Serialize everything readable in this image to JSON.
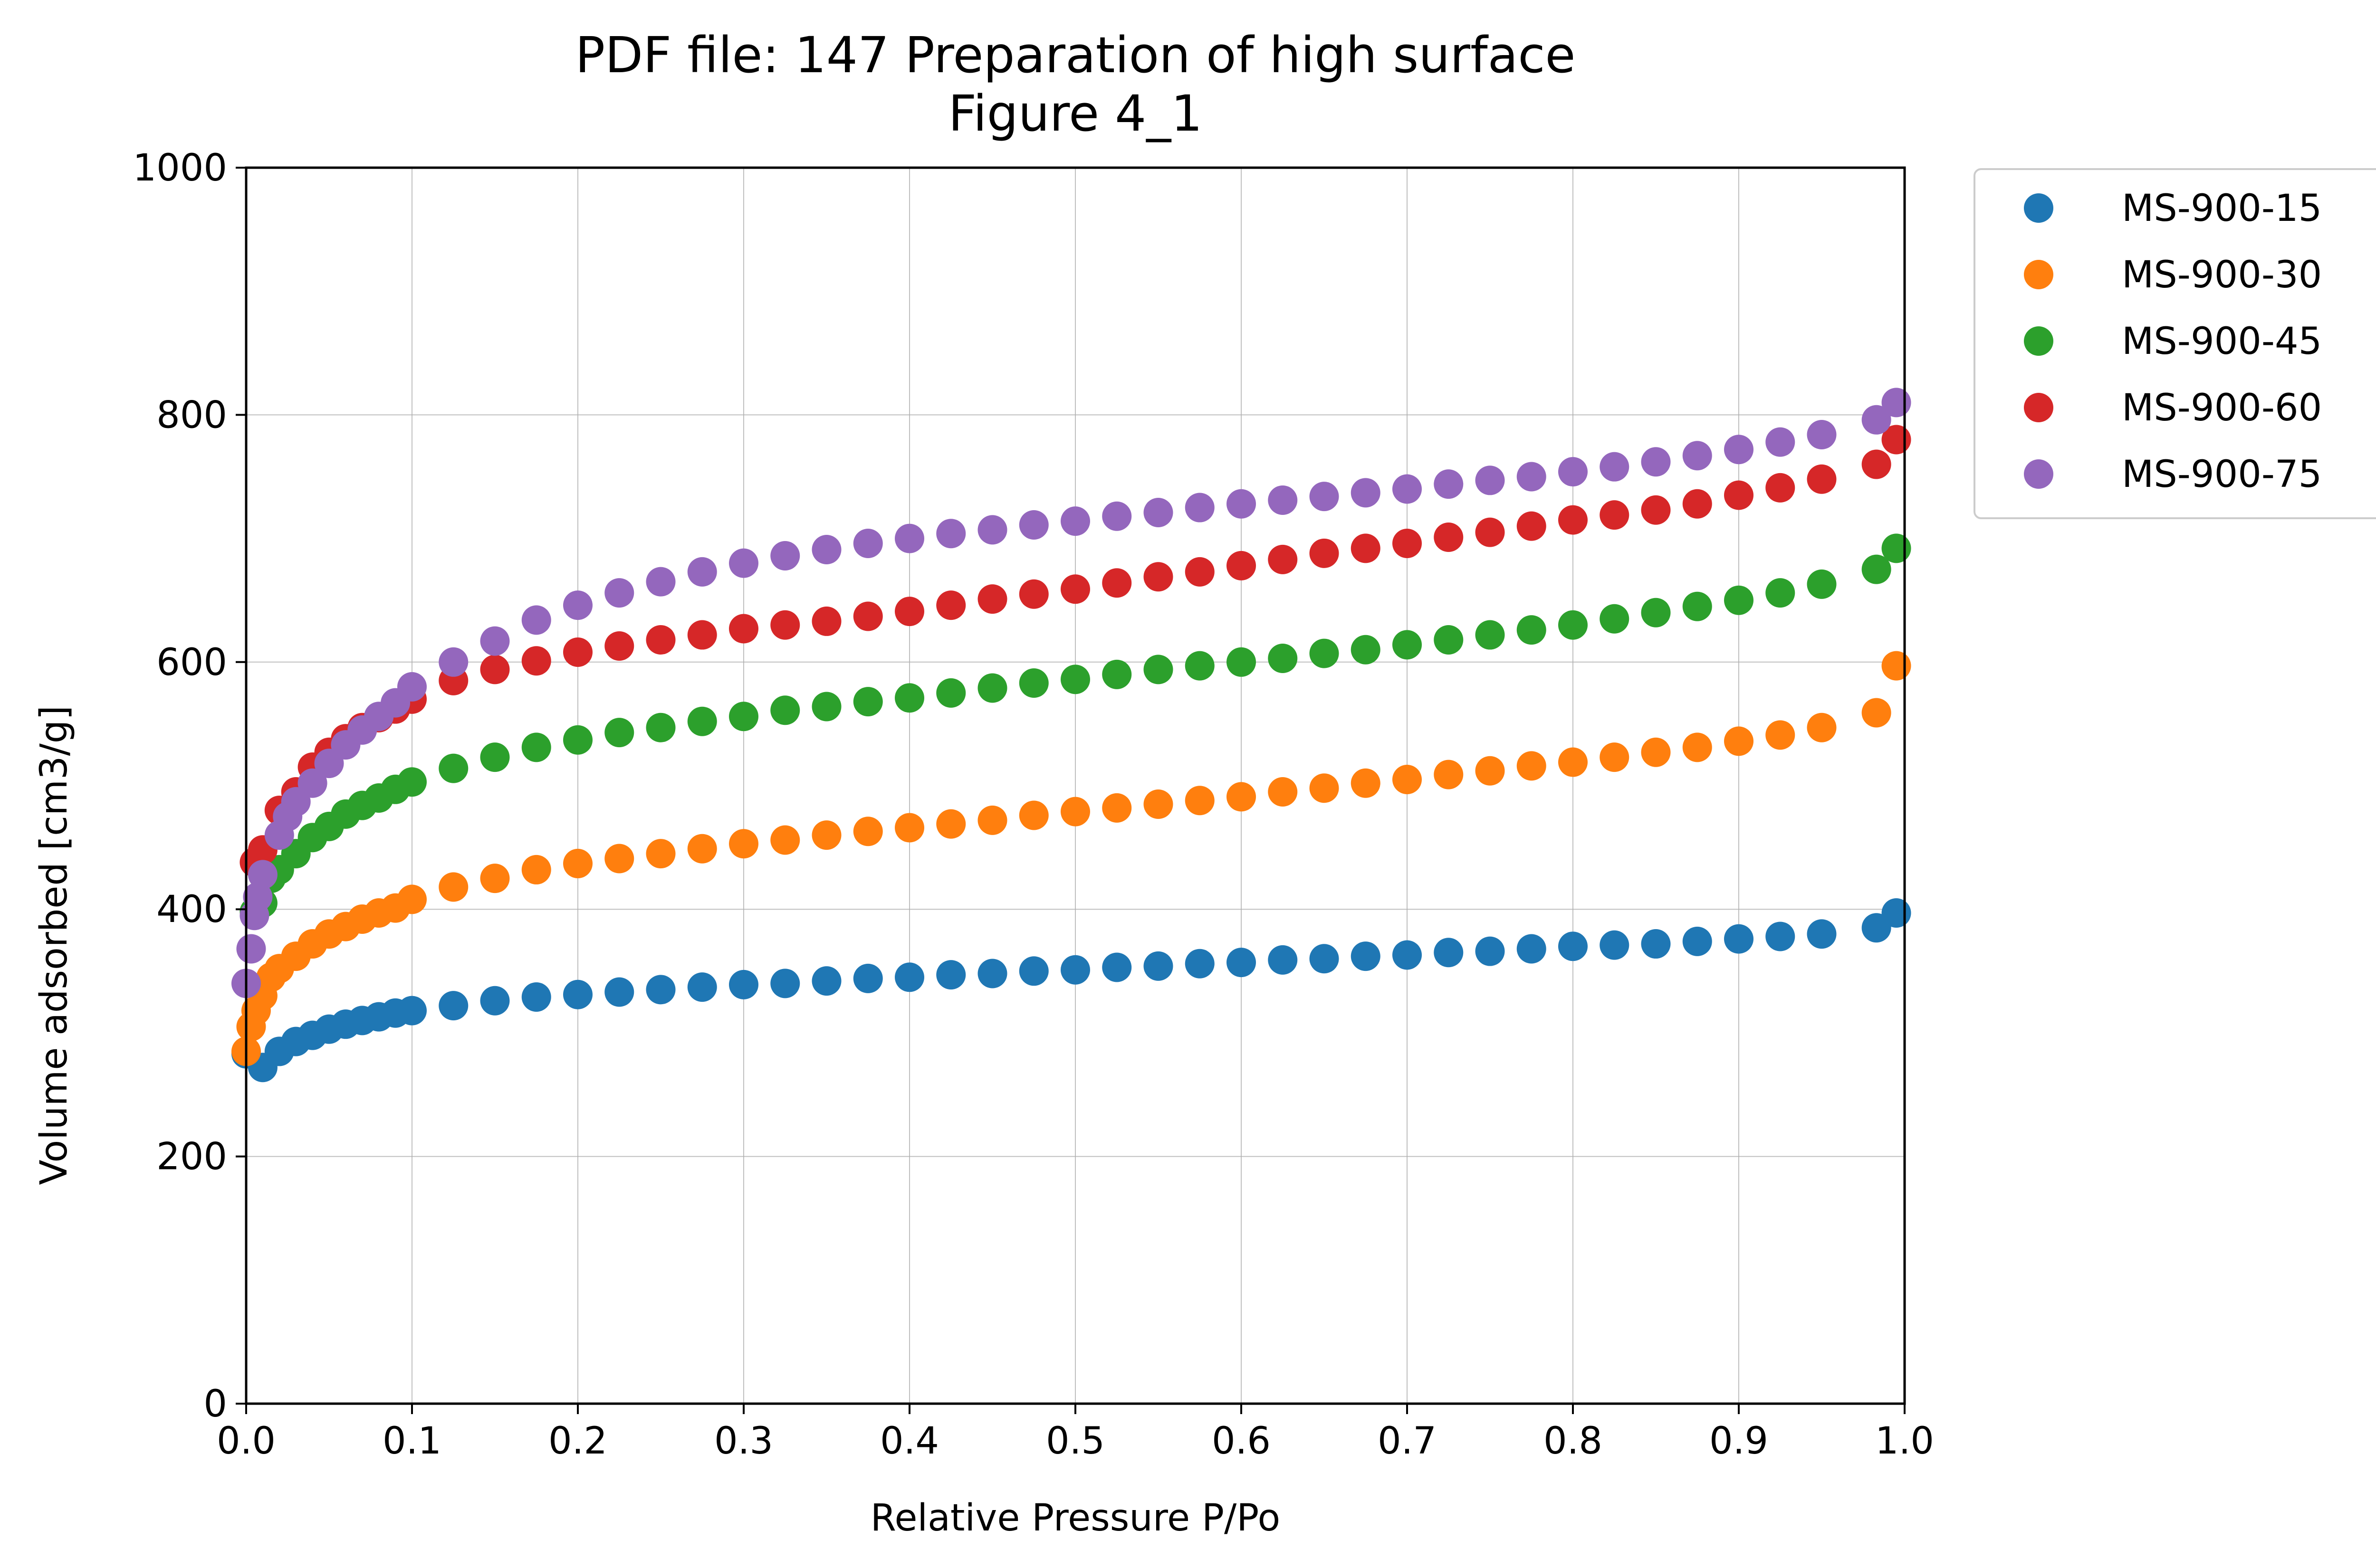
{
  "chart_data": {
    "type": "scatter",
    "title": [
      "PDF file: 147 Preparation of high surface",
      "Figure 4_1"
    ],
    "xlabel": "Relative Pressure P/Po",
    "ylabel": "Volume adsorbed [cm3/g]",
    "xlim": [
      0.0,
      1.0
    ],
    "ylim": [
      0,
      1000
    ],
    "xticks": [
      "0.0",
      "0.1",
      "0.2",
      "0.3",
      "0.4",
      "0.5",
      "0.6",
      "0.7",
      "0.8",
      "0.9",
      "1.0"
    ],
    "yticks": [
      "0",
      "200",
      "400",
      "600",
      "800",
      "1000"
    ],
    "grid": true,
    "legend_position": "outside-top-right",
    "series": [
      {
        "name": "MS-900-15",
        "color": "#1f77b4",
        "points": [
          [
            0.0,
            283
          ],
          [
            0.01,
            272
          ],
          [
            0.02,
            285
          ],
          [
            0.03,
            293
          ],
          [
            0.04,
            298
          ],
          [
            0.05,
            303
          ],
          [
            0.06,
            307
          ],
          [
            0.07,
            310
          ],
          [
            0.08,
            313
          ],
          [
            0.09,
            316
          ],
          [
            0.1,
            318
          ],
          [
            0.125,
            322
          ],
          [
            0.15,
            326
          ],
          [
            0.175,
            329
          ],
          [
            0.2,
            331
          ],
          [
            0.225,
            333
          ],
          [
            0.25,
            335
          ],
          [
            0.275,
            337
          ],
          [
            0.3,
            339
          ],
          [
            0.325,
            340
          ],
          [
            0.35,
            342
          ],
          [
            0.375,
            344
          ],
          [
            0.4,
            345
          ],
          [
            0.425,
            347
          ],
          [
            0.45,
            348
          ],
          [
            0.475,
            350
          ],
          [
            0.5,
            351
          ],
          [
            0.525,
            353
          ],
          [
            0.55,
            354
          ],
          [
            0.575,
            356
          ],
          [
            0.6,
            357
          ],
          [
            0.625,
            359
          ],
          [
            0.65,
            360
          ],
          [
            0.675,
            362
          ],
          [
            0.7,
            363
          ],
          [
            0.725,
            365
          ],
          [
            0.75,
            366
          ],
          [
            0.775,
            368
          ],
          [
            0.8,
            370
          ],
          [
            0.825,
            371
          ],
          [
            0.85,
            372
          ],
          [
            0.875,
            374
          ],
          [
            0.9,
            376
          ],
          [
            0.925,
            378
          ],
          [
            0.95,
            380
          ],
          [
            0.983,
            385
          ],
          [
            0.995,
            397
          ]
        ]
      },
      {
        "name": "MS-900-30",
        "color": "#ff7f0e",
        "points": [
          [
            0.0,
            285
          ],
          [
            0.003,
            305
          ],
          [
            0.006,
            318
          ],
          [
            0.01,
            330
          ],
          [
            0.015,
            345
          ],
          [
            0.02,
            352
          ],
          [
            0.03,
            362
          ],
          [
            0.04,
            372
          ],
          [
            0.05,
            380
          ],
          [
            0.06,
            386
          ],
          [
            0.07,
            392
          ],
          [
            0.08,
            397
          ],
          [
            0.09,
            401
          ],
          [
            0.1,
            408
          ],
          [
            0.125,
            418
          ],
          [
            0.15,
            425
          ],
          [
            0.175,
            432
          ],
          [
            0.2,
            437
          ],
          [
            0.225,
            441
          ],
          [
            0.25,
            445
          ],
          [
            0.275,
            449
          ],
          [
            0.3,
            453
          ],
          [
            0.325,
            456
          ],
          [
            0.35,
            460
          ],
          [
            0.375,
            463
          ],
          [
            0.4,
            466
          ],
          [
            0.425,
            469
          ],
          [
            0.45,
            472
          ],
          [
            0.475,
            476
          ],
          [
            0.5,
            479
          ],
          [
            0.525,
            482
          ],
          [
            0.55,
            485
          ],
          [
            0.575,
            488
          ],
          [
            0.6,
            491
          ],
          [
            0.625,
            495
          ],
          [
            0.65,
            498
          ],
          [
            0.675,
            502
          ],
          [
            0.7,
            505
          ],
          [
            0.725,
            509
          ],
          [
            0.75,
            512
          ],
          [
            0.775,
            516
          ],
          [
            0.8,
            519
          ],
          [
            0.825,
            523
          ],
          [
            0.85,
            527
          ],
          [
            0.875,
            531
          ],
          [
            0.9,
            536
          ],
          [
            0.925,
            541
          ],
          [
            0.95,
            547
          ],
          [
            0.983,
            559
          ],
          [
            0.995,
            597
          ]
        ]
      },
      {
        "name": "MS-900-45",
        "color": "#2ca02c",
        "points": [
          [
            0.005,
            398
          ],
          [
            0.01,
            405
          ],
          [
            0.015,
            425
          ],
          [
            0.02,
            432
          ],
          [
            0.03,
            445
          ],
          [
            0.04,
            458
          ],
          [
            0.05,
            467
          ],
          [
            0.06,
            477
          ],
          [
            0.07,
            484
          ],
          [
            0.08,
            490
          ],
          [
            0.09,
            497
          ],
          [
            0.1,
            503
          ],
          [
            0.125,
            514
          ],
          [
            0.15,
            523
          ],
          [
            0.175,
            531
          ],
          [
            0.2,
            537
          ],
          [
            0.225,
            543
          ],
          [
            0.25,
            547
          ],
          [
            0.275,
            552
          ],
          [
            0.3,
            556
          ],
          [
            0.325,
            561
          ],
          [
            0.35,
            564
          ],
          [
            0.375,
            568
          ],
          [
            0.4,
            571
          ],
          [
            0.425,
            575
          ],
          [
            0.45,
            579
          ],
          [
            0.475,
            583
          ],
          [
            0.5,
            586
          ],
          [
            0.525,
            590
          ],
          [
            0.55,
            594
          ],
          [
            0.575,
            597
          ],
          [
            0.6,
            600
          ],
          [
            0.625,
            603
          ],
          [
            0.65,
            607
          ],
          [
            0.675,
            610
          ],
          [
            0.7,
            614
          ],
          [
            0.725,
            618
          ],
          [
            0.75,
            622
          ],
          [
            0.775,
            626
          ],
          [
            0.8,
            630
          ],
          [
            0.825,
            635
          ],
          [
            0.85,
            640
          ],
          [
            0.875,
            645
          ],
          [
            0.9,
            650
          ],
          [
            0.925,
            656
          ],
          [
            0.95,
            663
          ],
          [
            0.983,
            675
          ],
          [
            0.995,
            692
          ]
        ]
      },
      {
        "name": "MS-900-60",
        "color": "#d62728",
        "points": [
          [
            0.005,
            438
          ],
          [
            0.01,
            448
          ],
          [
            0.02,
            480
          ],
          [
            0.03,
            495
          ],
          [
            0.04,
            515
          ],
          [
            0.05,
            527
          ],
          [
            0.06,
            538
          ],
          [
            0.07,
            547
          ],
          [
            0.08,
            555
          ],
          [
            0.09,
            562
          ],
          [
            0.1,
            570
          ],
          [
            0.125,
            585
          ],
          [
            0.15,
            594
          ],
          [
            0.175,
            601
          ],
          [
            0.2,
            608
          ],
          [
            0.225,
            613
          ],
          [
            0.25,
            618
          ],
          [
            0.275,
            622
          ],
          [
            0.3,
            627
          ],
          [
            0.325,
            630
          ],
          [
            0.35,
            633
          ],
          [
            0.375,
            637
          ],
          [
            0.4,
            641
          ],
          [
            0.425,
            646
          ],
          [
            0.45,
            651
          ],
          [
            0.475,
            655
          ],
          [
            0.5,
            659
          ],
          [
            0.525,
            664
          ],
          [
            0.55,
            669
          ],
          [
            0.575,
            673
          ],
          [
            0.6,
            678
          ],
          [
            0.625,
            683
          ],
          [
            0.65,
            688
          ],
          [
            0.675,
            692
          ],
          [
            0.7,
            696
          ],
          [
            0.725,
            701
          ],
          [
            0.75,
            705
          ],
          [
            0.775,
            710
          ],
          [
            0.8,
            715
          ],
          [
            0.825,
            719
          ],
          [
            0.85,
            723
          ],
          [
            0.875,
            728
          ],
          [
            0.9,
            735
          ],
          [
            0.925,
            741
          ],
          [
            0.95,
            748
          ],
          [
            0.983,
            760
          ],
          [
            0.995,
            780
          ]
        ]
      },
      {
        "name": "MS-900-75",
        "color": "#9467bd",
        "points": [
          [
            0.0,
            340
          ],
          [
            0.003,
            368
          ],
          [
            0.005,
            395
          ],
          [
            0.007,
            410
          ],
          [
            0.01,
            428
          ],
          [
            0.02,
            460
          ],
          [
            0.025,
            475
          ],
          [
            0.03,
            487
          ],
          [
            0.04,
            502
          ],
          [
            0.05,
            518
          ],
          [
            0.06,
            533
          ],
          [
            0.07,
            545
          ],
          [
            0.08,
            556
          ],
          [
            0.09,
            567
          ],
          [
            0.1,
            580
          ],
          [
            0.125,
            600
          ],
          [
            0.15,
            617
          ],
          [
            0.175,
            634
          ],
          [
            0.2,
            646
          ],
          [
            0.225,
            656
          ],
          [
            0.25,
            665
          ],
          [
            0.275,
            673
          ],
          [
            0.3,
            680
          ],
          [
            0.325,
            686
          ],
          [
            0.35,
            691
          ],
          [
            0.375,
            696
          ],
          [
            0.4,
            700
          ],
          [
            0.425,
            704
          ],
          [
            0.45,
            707
          ],
          [
            0.475,
            711
          ],
          [
            0.5,
            714
          ],
          [
            0.525,
            718
          ],
          [
            0.55,
            721
          ],
          [
            0.575,
            725
          ],
          [
            0.6,
            728
          ],
          [
            0.625,
            731
          ],
          [
            0.65,
            734
          ],
          [
            0.675,
            737
          ],
          [
            0.7,
            740
          ],
          [
            0.725,
            744
          ],
          [
            0.75,
            747
          ],
          [
            0.775,
            750
          ],
          [
            0.8,
            754
          ],
          [
            0.825,
            758
          ],
          [
            0.85,
            762
          ],
          [
            0.875,
            767
          ],
          [
            0.9,
            772
          ],
          [
            0.925,
            778
          ],
          [
            0.95,
            784
          ],
          [
            0.983,
            796
          ],
          [
            0.995,
            810
          ]
        ]
      }
    ]
  }
}
